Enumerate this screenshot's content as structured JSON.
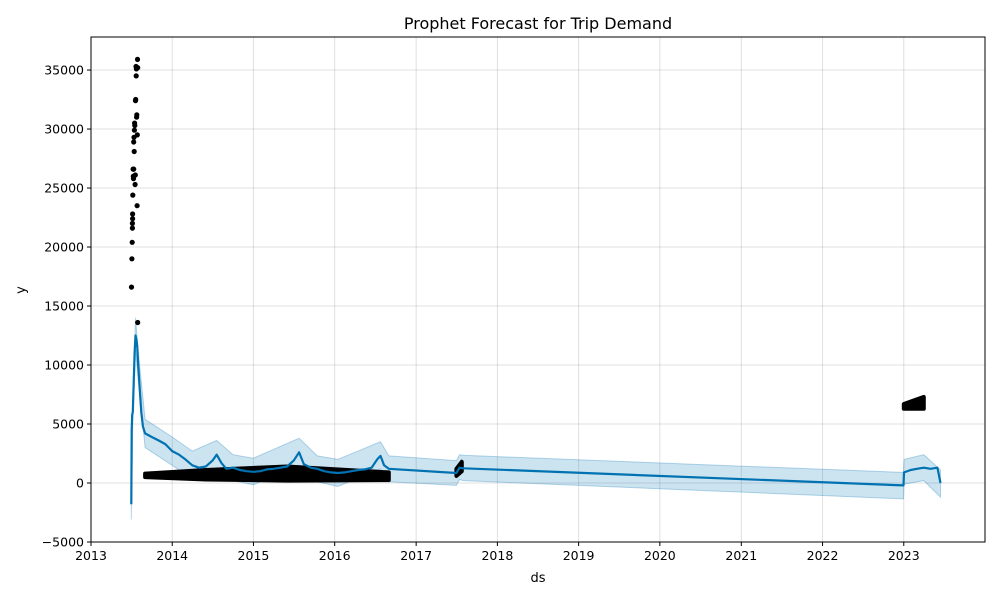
{
  "chart_data": {
    "type": "line",
    "title": "Prophet Forecast for Trip Demand",
    "xlabel": "ds",
    "ylabel": "y",
    "xlim": [
      "2013-01-01",
      "2024-01-01"
    ],
    "ylim": [
      -5000,
      37800
    ],
    "x_ticks": [
      "2013-01-01",
      "2014-01-01",
      "2015-01-01",
      "2016-01-01",
      "2017-01-01",
      "2018-01-01",
      "2019-01-01",
      "2020-01-01",
      "2021-01-01",
      "2022-01-01",
      "2023-01-01"
    ],
    "x_tick_labels": [
      "2013",
      "2014",
      "2015",
      "2016",
      "2017",
      "2018",
      "2019",
      "2020",
      "2021",
      "2022",
      "2023"
    ],
    "y_ticks": [
      -5000,
      0,
      5000,
      10000,
      15000,
      20000,
      25000,
      30000,
      35000
    ],
    "y_tick_labels": [
      "−5000",
      "0",
      "5000",
      "10000",
      "15000",
      "20000",
      "25000",
      "30000",
      "35000"
    ],
    "grid": true,
    "colors": {
      "forecast": "#0072B2",
      "interval": "#0072B2",
      "observed": "#000000"
    },
    "series": [
      {
        "kind": "forecast",
        "yhat": [
          [
            "2013-07-01",
            -1800
          ],
          [
            "2013-07-03",
            4500
          ],
          [
            "2013-07-05",
            5800
          ],
          [
            "2013-07-08",
            6000
          ],
          [
            "2013-07-12",
            8500
          ],
          [
            "2013-07-16",
            11000
          ],
          [
            "2013-07-20",
            12500
          ],
          [
            "2013-07-24",
            12200
          ],
          [
            "2013-07-28",
            11500
          ],
          [
            "2013-08-01",
            10000
          ],
          [
            "2013-08-08",
            8000
          ],
          [
            "2013-08-15",
            6000
          ],
          [
            "2013-08-22",
            4800
          ],
          [
            "2013-09-01",
            4200
          ],
          [
            "2013-10-01",
            3900
          ],
          [
            "2013-11-01",
            3600
          ],
          [
            "2013-12-01",
            3300
          ],
          [
            "2014-01-01",
            2700
          ],
          [
            "2014-02-01",
            2400
          ],
          [
            "2014-03-01",
            2000
          ],
          [
            "2014-04-01",
            1500
          ],
          [
            "2014-05-01",
            1300
          ],
          [
            "2014-06-01",
            1400
          ],
          [
            "2014-07-01",
            1900
          ],
          [
            "2014-07-20",
            2400
          ],
          [
            "2014-08-10",
            1700
          ],
          [
            "2014-09-01",
            1200
          ],
          [
            "2014-10-01",
            1300
          ],
          [
            "2014-11-01",
            1100
          ],
          [
            "2014-12-01",
            1000
          ],
          [
            "2015-01-01",
            950
          ],
          [
            "2015-02-01",
            1000
          ],
          [
            "2015-03-01",
            1150
          ],
          [
            "2015-04-01",
            1200
          ],
          [
            "2015-05-01",
            1300
          ],
          [
            "2015-06-01",
            1400
          ],
          [
            "2015-07-01",
            1900
          ],
          [
            "2015-07-25",
            2600
          ],
          [
            "2015-08-15",
            1600
          ],
          [
            "2015-09-15",
            1300
          ],
          [
            "2015-10-15",
            1200
          ],
          [
            "2015-11-15",
            1000
          ],
          [
            "2015-12-15",
            900
          ],
          [
            "2016-01-15",
            850
          ],
          [
            "2016-02-15",
            900
          ],
          [
            "2016-03-15",
            1000
          ],
          [
            "2016-04-15",
            1100
          ],
          [
            "2016-05-15",
            1150
          ],
          [
            "2016-06-15",
            1300
          ],
          [
            "2016-07-10",
            2000
          ],
          [
            "2016-07-25",
            2300
          ],
          [
            "2016-08-10",
            1500
          ],
          [
            "2016-08-31",
            1200
          ],
          [
            "2017-07-01",
            850
          ],
          [
            "2017-07-15",
            1300
          ],
          [
            "2017-08-01",
            1250
          ],
          [
            "2022-12-31",
            -200
          ],
          [
            "2023-01-02",
            900
          ],
          [
            "2023-02-01",
            1100
          ],
          [
            "2023-03-01",
            1200
          ],
          [
            "2023-04-01",
            1300
          ],
          [
            "2023-05-01",
            1200
          ],
          [
            "2023-06-01",
            1300
          ],
          [
            "2023-06-15",
            0
          ]
        ],
        "yhat_lower": [
          [
            "2013-07-01",
            -3100
          ],
          [
            "2013-07-08",
            5200
          ],
          [
            "2013-07-20",
            11200
          ],
          [
            "2013-08-01",
            8800
          ],
          [
            "2013-09-01",
            3000
          ],
          [
            "2014-01-01",
            1500
          ],
          [
            "2014-04-01",
            300
          ],
          [
            "2014-07-20",
            1300
          ],
          [
            "2014-10-01",
            200
          ],
          [
            "2015-01-01",
            -150
          ],
          [
            "2015-07-25",
            1500
          ],
          [
            "2015-10-15",
            100
          ],
          [
            "2016-01-15",
            -300
          ],
          [
            "2016-07-25",
            1200
          ],
          [
            "2016-08-31",
            100
          ],
          [
            "2017-07-01",
            -200
          ],
          [
            "2017-07-15",
            300
          ],
          [
            "2017-08-01",
            200
          ],
          [
            "2022-12-31",
            -1350
          ],
          [
            "2023-01-02",
            -100
          ],
          [
            "2023-04-01",
            200
          ],
          [
            "2023-06-15",
            -1200
          ]
        ],
        "yhat_upper": [
          [
            "2013-07-01",
            -500
          ],
          [
            "2013-07-08",
            7000
          ],
          [
            "2013-07-20",
            14000
          ],
          [
            "2013-08-01",
            11200
          ],
          [
            "2013-09-01",
            5400
          ],
          [
            "2014-01-01",
            3900
          ],
          [
            "2014-04-01",
            2700
          ],
          [
            "2014-07-20",
            3600
          ],
          [
            "2014-10-01",
            2400
          ],
          [
            "2015-01-01",
            2100
          ],
          [
            "2015-07-25",
            3800
          ],
          [
            "2015-10-15",
            2300
          ],
          [
            "2016-01-15",
            2000
          ],
          [
            "2016-07-25",
            3500
          ],
          [
            "2016-08-31",
            2300
          ],
          [
            "2017-07-01",
            1900
          ],
          [
            "2017-07-15",
            2400
          ],
          [
            "2017-08-01",
            2350
          ],
          [
            "2022-12-31",
            900
          ],
          [
            "2023-01-02",
            2000
          ],
          [
            "2023-04-01",
            2400
          ],
          [
            "2023-06-15",
            1100
          ]
        ]
      },
      {
        "kind": "observed",
        "points": [
          [
            "2013-07-02",
            16600
          ],
          [
            "2013-07-04",
            19000
          ],
          [
            "2013-07-05",
            20400
          ],
          [
            "2013-07-06",
            21600
          ],
          [
            "2013-07-06",
            22000
          ],
          [
            "2013-07-07",
            22400
          ],
          [
            "2013-07-07",
            22800
          ],
          [
            "2013-07-08",
            24400
          ],
          [
            "2013-07-09",
            26600
          ],
          [
            "2013-07-10",
            26000
          ],
          [
            "2013-07-11",
            25800
          ],
          [
            "2013-07-12",
            26600
          ],
          [
            "2013-07-12",
            28900
          ],
          [
            "2013-07-13",
            29300
          ],
          [
            "2013-07-14",
            28100
          ],
          [
            "2013-07-15",
            29900
          ],
          [
            "2013-07-16",
            30500
          ],
          [
            "2013-07-17",
            30300
          ],
          [
            "2013-07-18",
            25300
          ],
          [
            "2013-07-19",
            26100
          ],
          [
            "2013-07-20",
            32400
          ],
          [
            "2013-07-21",
            32500
          ],
          [
            "2013-07-22",
            35300
          ],
          [
            "2013-07-23",
            34500
          ],
          [
            "2013-07-24",
            35100
          ],
          [
            "2013-07-25",
            31000
          ],
          [
            "2013-07-26",
            31200
          ],
          [
            "2013-07-27",
            23500
          ],
          [
            "2013-07-28",
            29500
          ],
          [
            "2013-07-29",
            35900
          ],
          [
            "2013-07-30",
            35200
          ],
          [
            "2013-07-30",
            13600
          ]
        ],
        "clusters": [
          {
            "start": "2013-09-01",
            "end": "2016-08-31",
            "lower": [
              [
                "2013-09-01",
                500
              ],
              [
                "2014-06-01",
                300
              ],
              [
                "2015-06-01",
                200
              ],
              [
                "2016-08-31",
                250
              ]
            ],
            "upper": [
              [
                "2013-09-01",
                800
              ],
              [
                "2014-06-01",
                1100
              ],
              [
                "2015-06-01",
                1400
              ],
              [
                "2016-08-31",
                900
              ]
            ]
          },
          {
            "start": "2017-07-01",
            "end": "2017-07-25",
            "lower": [
              [
                "2017-07-01",
                600
              ],
              [
                "2017-07-25",
                1000
              ]
            ],
            "upper": [
              [
                "2017-07-01",
                1200
              ],
              [
                "2017-07-25",
                1800
              ]
            ]
          },
          {
            "start": "2023-01-01",
            "end": "2023-04-01",
            "lower": [
              [
                "2023-01-01",
                6300
              ],
              [
                "2023-04-01",
                6300
              ]
            ],
            "upper": [
              [
                "2023-01-01",
                6700
              ],
              [
                "2023-04-01",
                7300
              ]
            ]
          }
        ]
      }
    ]
  }
}
